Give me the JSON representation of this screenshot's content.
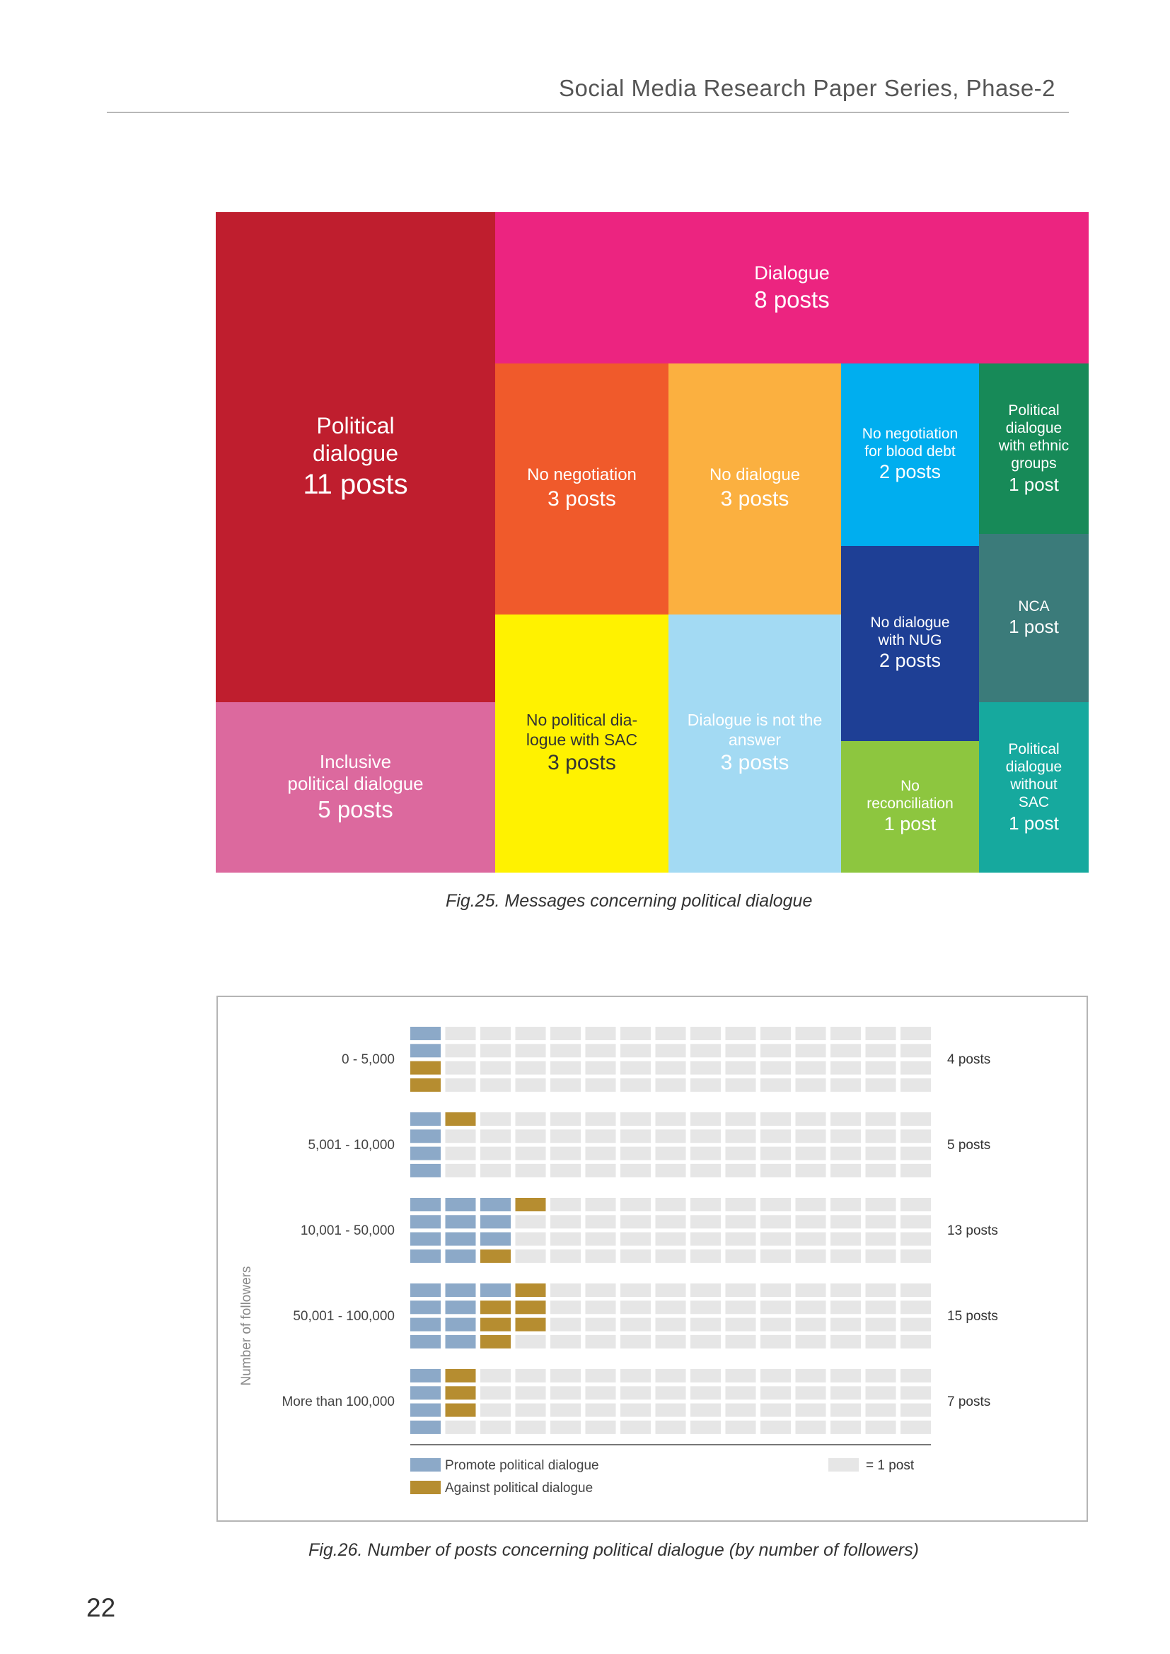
{
  "header": {
    "title": "Social Media Research Paper Series, Phase-2"
  },
  "page_number": "22",
  "figure25": {
    "caption": "Fig.25. Messages concerning political dialogue",
    "chart_data": {
      "type": "treemap",
      "items": [
        {
          "label": "Political\ndialogue",
          "value": 11,
          "value_text": "11 posts",
          "color": "#bf1e2e",
          "text_color": "#ffffff"
        },
        {
          "label": "Dialogue",
          "value": 8,
          "value_text": "8 posts",
          "color": "#ec2480",
          "text_color": "#ffffff"
        },
        {
          "label": "No negotiation",
          "value": 3,
          "value_text": "3 posts",
          "color": "#f05a2b",
          "text_color": "#ffffff"
        },
        {
          "label": "No dialogue",
          "value": 3,
          "value_text": "3 posts",
          "color": "#fbb040",
          "text_color": "#ffffff"
        },
        {
          "label": "No negotiation\nfor blood debt",
          "value": 2,
          "value_text": "2 posts",
          "color": "#00aeef",
          "text_color": "#ffffff"
        },
        {
          "label": "Political\ndialogue\nwith ethnic\ngroups",
          "value": 1,
          "value_text": "1 post",
          "color": "#178a58",
          "text_color": "#ffffff"
        },
        {
          "label": "NCA",
          "value": 1,
          "value_text": "1 post",
          "color": "#3b7b7a",
          "text_color": "#ffffff"
        },
        {
          "label": "No dialogue\nwith NUG",
          "value": 2,
          "value_text": "2 posts",
          "color": "#1e3f95",
          "text_color": "#ffffff"
        },
        {
          "label": "Inclusive\npolitical dialogue",
          "value": 5,
          "value_text": "5 posts",
          "color": "#dc699e",
          "text_color": "#ffffff"
        },
        {
          "label": "No political dia-\nlogue with SAC",
          "value": 3,
          "value_text": "3 posts",
          "color": "#fff200",
          "text_color": "#333333"
        },
        {
          "label": "Dialogue is not the\nanswer",
          "value": 3,
          "value_text": "3 posts",
          "color": "#a3daf3",
          "text_color": "#ffffff"
        },
        {
          "label": "No\nreconciliation",
          "value": 1,
          "value_text": "1 post",
          "color": "#8dc63f",
          "text_color": "#ffffff"
        },
        {
          "label": "Political\ndialogue\nwithout\nSAC",
          "value": 1,
          "value_text": "1 post",
          "color": "#16a99e",
          "text_color": "#ffffff"
        }
      ]
    }
  },
  "figure26": {
    "caption": "Fig.26. Number of posts concerning political dialogue (by number of followers)",
    "chart_data": {
      "type": "waffle",
      "ylabel": "Number of followers",
      "colors": {
        "promote": "#8ca9c8",
        "against": "#b68d30",
        "empty": "#e6e6e6"
      },
      "groups": [
        {
          "name": "0 - 5,000",
          "promote": 2,
          "against": 2,
          "total_text": "4 posts"
        },
        {
          "name": "5,001 - 10,000",
          "promote": 4,
          "against": 1,
          "total_text": "5 posts"
        },
        {
          "name": "10,001 - 50,000",
          "promote": 11,
          "against": 2,
          "total_text": "13 posts"
        },
        {
          "name": "50,001 - 100,000",
          "promote": 9,
          "against": 6,
          "total_text": "15 posts"
        },
        {
          "name": "More than 100,000",
          "promote": 4,
          "against": 3,
          "total_text": "7 posts"
        }
      ],
      "legend": [
        {
          "label": "Promote political dialogue",
          "key": "promote"
        },
        {
          "label": "Against political dialogue",
          "key": "against"
        }
      ],
      "unit_legend": "= 1 post"
    }
  }
}
